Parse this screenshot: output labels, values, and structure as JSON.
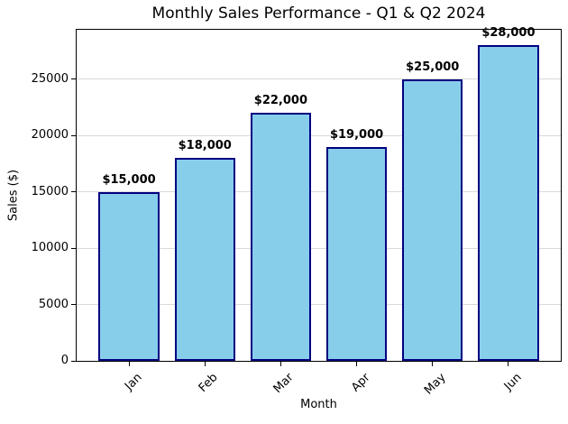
{
  "chart_data": {
    "type": "bar",
    "title": "Monthly Sales Performance - Q1 & Q2 2024",
    "xlabel": "Month",
    "ylabel": "Sales ($)",
    "categories": [
      "Jan",
      "Feb",
      "Mar",
      "Apr",
      "May",
      "Jun"
    ],
    "values": [
      15000,
      18000,
      22000,
      19000,
      25000,
      28000
    ],
    "bar_labels": [
      "$15,000",
      "$18,000",
      "$22,000",
      "$19,000",
      "$25,000",
      "$28,000"
    ],
    "ylim": [
      0,
      29400
    ],
    "yticks": [
      0,
      5000,
      10000,
      15000,
      20000,
      25000
    ],
    "ytick_labels": [
      "0",
      "5000",
      "10000",
      "15000",
      "20000",
      "25000"
    ],
    "xtick_rotation_deg": 45,
    "bar_width_units": 0.8,
    "grid": "y",
    "legend": "none",
    "colors": {
      "bar_fill": "#87CEEB",
      "bar_edge": "#000080",
      "text": "#000000",
      "grid": "#000000",
      "background": "#ffffff",
      "spine": "#000000"
    }
  }
}
